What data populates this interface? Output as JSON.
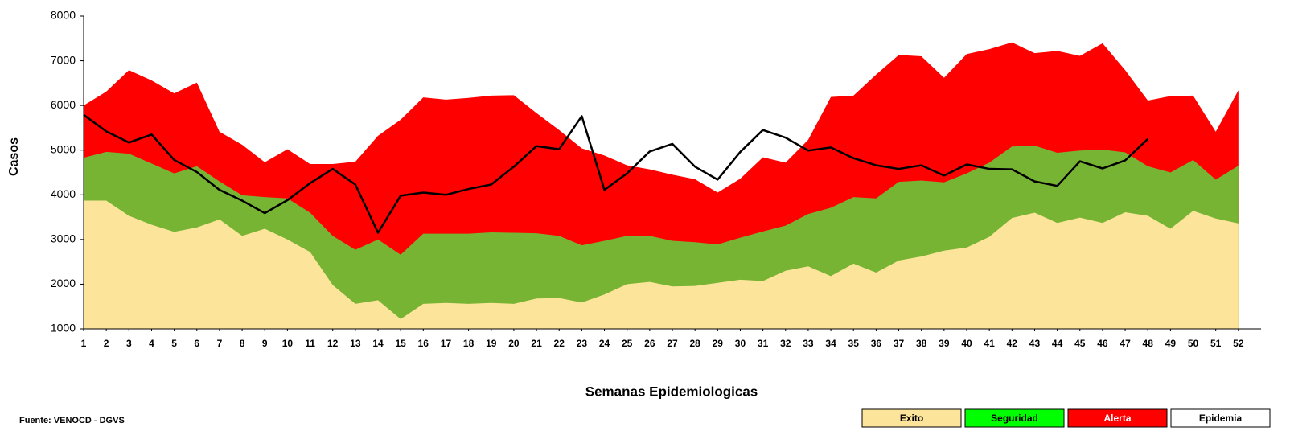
{
  "chart_data": {
    "type": "area",
    "x_label": "Semanas Epidemiologicas",
    "y_label": "Casos",
    "source": "Fuente: VENOCD - DGVS",
    "x": [
      1,
      2,
      3,
      4,
      5,
      6,
      7,
      8,
      9,
      10,
      11,
      12,
      13,
      14,
      15,
      16,
      17,
      18,
      19,
      20,
      21,
      22,
      23,
      24,
      25,
      26,
      27,
      28,
      29,
      30,
      31,
      32,
      33,
      34,
      35,
      36,
      37,
      38,
      39,
      40,
      41,
      42,
      43,
      44,
      45,
      46,
      47,
      48,
      49,
      50,
      51,
      52
    ],
    "xlim": [
      1,
      53
    ],
    "xticks": [
      1,
      2,
      3,
      4,
      5,
      6,
      7,
      8,
      9,
      10,
      11,
      12,
      13,
      14,
      15,
      16,
      17,
      18,
      19,
      20,
      21,
      22,
      23,
      24,
      25,
      26,
      27,
      28,
      29,
      30,
      31,
      32,
      33,
      34,
      35,
      36,
      37,
      38,
      39,
      40,
      41,
      42,
      43,
      44,
      45,
      46,
      47,
      48,
      49,
      50,
      51,
      52
    ],
    "ylim": [
      1000,
      8000
    ],
    "yticks": [
      1000,
      2000,
      3000,
      4000,
      5000,
      6000,
      7000,
      8000
    ],
    "series": [
      {
        "name": "Exito",
        "kind": "area",
        "color": "#fde49b",
        "legend_color": "#fde49b",
        "values": [
          3870,
          3870,
          3530,
          3330,
          3170,
          3270,
          3450,
          3080,
          3240,
          3000,
          2720,
          1980,
          1560,
          1640,
          1220,
          1560,
          1580,
          1560,
          1580,
          1560,
          1680,
          1690,
          1590,
          1770,
          2000,
          2050,
          1950,
          1960,
          2030,
          2100,
          2070,
          2300,
          2400,
          2180,
          2460,
          2260,
          2530,
          2620,
          2750,
          2820,
          3060,
          3480,
          3600,
          3370,
          3490,
          3370,
          3610,
          3530,
          3240,
          3640,
          3470,
          3360
        ]
      },
      {
        "name": "Seguridad",
        "kind": "area",
        "color": "#77b433",
        "legend_color": "#00ff00",
        "values": [
          4830,
          4960,
          4920,
          4700,
          4480,
          4640,
          4300,
          3990,
          3950,
          3920,
          3600,
          3080,
          2770,
          3000,
          2660,
          3130,
          3130,
          3130,
          3160,
          3150,
          3140,
          3080,
          2870,
          2970,
          3080,
          3080,
          2970,
          2940,
          2890,
          3040,
          3180,
          3310,
          3570,
          3710,
          3950,
          3920,
          4290,
          4320,
          4280,
          4480,
          4720,
          5080,
          5100,
          4940,
          4990,
          5010,
          4950,
          4640,
          4500,
          4780,
          4340,
          4650
        ]
      },
      {
        "name": "Alerta",
        "kind": "area",
        "color": "#ff0000",
        "legend_color": "#ff0000",
        "values": [
          6000,
          6310,
          6790,
          6560,
          6270,
          6510,
          5410,
          5120,
          4730,
          5020,
          4690,
          4690,
          4740,
          5320,
          5680,
          6180,
          6130,
          6170,
          6220,
          6230,
          5830,
          5450,
          5040,
          4880,
          4660,
          4570,
          4450,
          4350,
          4050,
          4360,
          4840,
          4720,
          5230,
          6190,
          6220,
          6690,
          7130,
          7100,
          6620,
          7150,
          7260,
          7410,
          7170,
          7220,
          7110,
          7390,
          6790,
          6110,
          6210,
          6220,
          5410,
          6340
        ]
      },
      {
        "name": "Epidemia",
        "kind": "line",
        "color": "#000000",
        "legend_color": "#ffffff",
        "values": [
          5790,
          5420,
          5170,
          5350,
          4780,
          4510,
          4110,
          3870,
          3590,
          3880,
          4260,
          4580,
          4230,
          3150,
          3980,
          4050,
          4000,
          4130,
          4230,
          4630,
          5090,
          5020,
          5760,
          4110,
          4480,
          4970,
          5140,
          4630,
          4340,
          4960,
          5450,
          5280,
          4990,
          5060,
          4820,
          4660,
          4580,
          4660,
          4430,
          4680,
          4580,
          4570,
          4300,
          4200,
          4750,
          4590,
          4770,
          5250,
          null,
          null,
          null,
          null
        ]
      }
    ]
  }
}
